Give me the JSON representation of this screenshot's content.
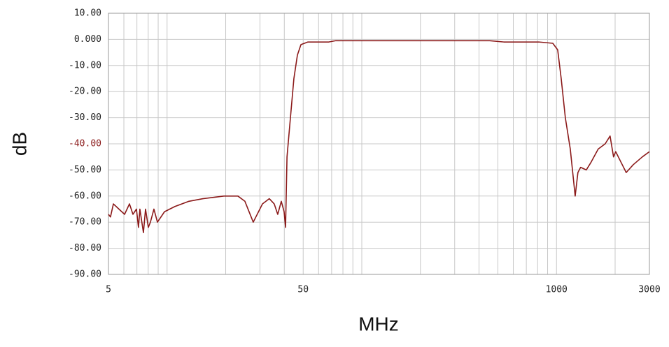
{
  "chart_data": {
    "type": "line",
    "xlabel": "MHz",
    "ylabel": "dB",
    "log_x": true,
    "grid": true,
    "xlim": [
      5,
      3000
    ],
    "ylim": [
      -90,
      10
    ],
    "xticks": [
      5,
      50,
      1000,
      3000
    ],
    "xminor": [
      6,
      7,
      8,
      9,
      10,
      20,
      30,
      40,
      60,
      70,
      80,
      90,
      100,
      200,
      300,
      400,
      500,
      600,
      700,
      800,
      900,
      2000
    ],
    "yticks": [
      {
        "value": -90,
        "label": "-90.00"
      },
      {
        "value": -80,
        "label": "-80.00"
      },
      {
        "value": -70,
        "label": "-70.00"
      },
      {
        "value": -60,
        "label": "-60.00"
      },
      {
        "value": -50,
        "label": "-50.00"
      },
      {
        "value": -40,
        "label": "-40.00",
        "color": "#8b1a1a"
      },
      {
        "value": -30,
        "label": "-30.00"
      },
      {
        "value": -20,
        "label": "-20.00"
      },
      {
        "value": -10,
        "label": "-10.00"
      },
      {
        "value": 0,
        "label": "0.000"
      },
      {
        "value": 10,
        "label": "10.00"
      }
    ],
    "series": [
      {
        "color": "#8b1a1a",
        "x": [
          5,
          5.12,
          5.3,
          5.66,
          6.05,
          6.41,
          6.68,
          6.96,
          7.13,
          7.25,
          7.56,
          7.75,
          8.01,
          8.21,
          8.56,
          8.92,
          9.7,
          10.97,
          12.95,
          15.28,
          19.6,
          23.1,
          25.1,
          27.7,
          30.9,
          33.5,
          35.5,
          37.0,
          38.6,
          39.9,
          40.6,
          41.3,
          43.0,
          44.8,
          46.7,
          48.7,
          52.9,
          67.7,
          73.6,
          454,
          536,
          811,
          957,
          1014,
          1057,
          1110,
          1177,
          1247,
          1288,
          1330,
          1422,
          1506,
          1637,
          1778,
          1884,
          1963,
          2014,
          2280,
          2477,
          2760,
          3000
        ],
        "values": [
          -67,
          -68,
          -63,
          -65,
          -67,
          -63,
          -67,
          -65,
          -72,
          -65,
          -74,
          -65,
          -72,
          -70,
          -65,
          -70,
          -66,
          -64,
          -62,
          -61,
          -60,
          -60,
          -62,
          -70,
          -63,
          -61,
          -63,
          -67,
          -62,
          -66,
          -72,
          -45,
          -30,
          -15,
          -6,
          -2,
          -1,
          -1,
          -0.5,
          -0.5,
          -1,
          -1,
          -1.5,
          -4,
          -15,
          -30,
          -42,
          -60,
          -51,
          -49,
          -50,
          -47,
          -42,
          -40,
          -37,
          -45,
          -43,
          -51,
          -48,
          -45,
          -43
        ]
      }
    ]
  }
}
